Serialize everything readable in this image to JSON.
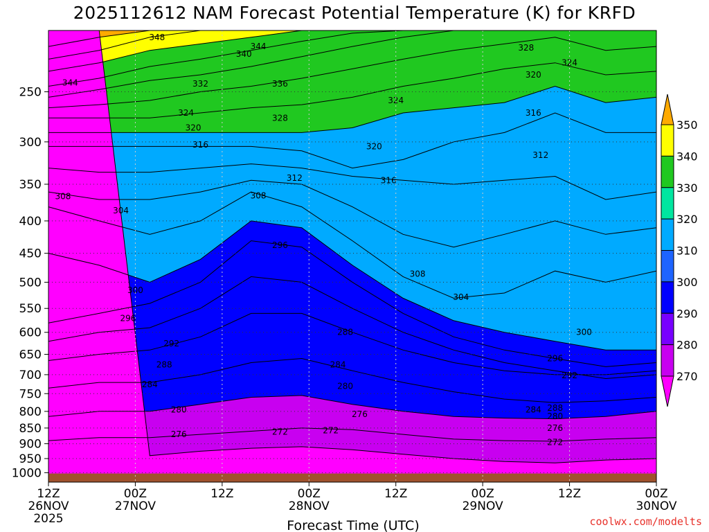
{
  "title": "2025112612 NAM Forecast Potential Temperature (K) for KRFD",
  "credit": "coolwx.com/modelts",
  "chart_data": {
    "type": "heatmap",
    "title": "2025112612 NAM Forecast Potential Temperature (K) for KRFD",
    "xlabel": "Forecast Time (UTC)",
    "ylabel": "",
    "y_log_scale": true,
    "y_inverted": true,
    "y_ticks": [
      250,
      300,
      350,
      400,
      450,
      500,
      550,
      600,
      650,
      700,
      750,
      800,
      850,
      900,
      950,
      1000
    ],
    "x_ticks": [
      {
        "hour": 0,
        "line1": "12Z",
        "line2": "26NOV",
        "line3": "2025"
      },
      {
        "hour": 12,
        "line1": "00Z",
        "line2": "27NOV",
        "line3": ""
      },
      {
        "hour": 24,
        "line1": "12Z",
        "line2": "",
        "line3": ""
      },
      {
        "hour": 36,
        "line1": "00Z",
        "line2": "28NOV",
        "line3": ""
      },
      {
        "hour": 48,
        "line1": "12Z",
        "line2": "",
        "line3": ""
      },
      {
        "hour": 60,
        "line1": "00Z",
        "line2": "29NOV",
        "line3": ""
      },
      {
        "hour": 72,
        "line1": "12Z",
        "line2": "",
        "line3": ""
      },
      {
        "hour": 84,
        "line1": "00Z",
        "line2": "30NOV",
        "line3": ""
      }
    ],
    "x_range_hours": [
      0,
      84
    ],
    "y_range": [
      200,
      1035
    ],
    "grid": true,
    "colorbar": {
      "levels": [
        270,
        280,
        290,
        300,
        310,
        320,
        330,
        340,
        350
      ],
      "colors": [
        "#ff00ff",
        "#c800f0",
        "#7800ff",
        "#0000ff",
        "#1e64ff",
        "#00aaff",
        "#00e6a0",
        "#20c820",
        "#ffff00",
        "#ffaa00"
      ],
      "placement": "right"
    },
    "contour_lines": [
      {
        "theta": 272,
        "p": [
          null,
          null,
          940,
          925,
          915,
          910,
          920,
          935,
          950,
          960,
          965,
          955,
          950
        ]
      },
      {
        "theta": 276,
        "p": [
          890,
          880,
          880,
          870,
          860,
          850,
          855,
          870,
          885,
          890,
          892,
          885,
          880
        ]
      },
      {
        "theta": 280,
        "p": [
          815,
          800,
          800,
          780,
          760,
          755,
          780,
          800,
          815,
          820,
          822,
          815,
          800
        ]
      },
      {
        "theta": 284,
        "p": [
          735,
          720,
          720,
          700,
          670,
          660,
          690,
          720,
          745,
          765,
          775,
          770,
          760
        ]
      },
      {
        "theta": 288,
        "p": [
          665,
          650,
          640,
          610,
          560,
          560,
          600,
          640,
          670,
          690,
          700,
          700,
          690
        ]
      },
      {
        "theta": 292,
        "p": [
          620,
          600,
          590,
          550,
          490,
          500,
          550,
          600,
          640,
          670,
          690,
          710,
          700
        ]
      },
      {
        "theta": 296,
        "p": [
          580,
          560,
          540,
          500,
          430,
          440,
          500,
          560,
          610,
          640,
          660,
          680,
          670
        ]
      },
      {
        "theta": 300,
        "p": [
          450,
          470,
          500,
          460,
          400,
          410,
          470,
          530,
          575,
          600,
          620,
          640,
          640
        ]
      },
      {
        "theta": 304,
        "p": [
          380,
          400,
          420,
          400,
          360,
          380,
          430,
          490,
          530,
          520,
          480,
          500,
          480
        ]
      },
      {
        "theta": 308,
        "p": [
          360,
          370,
          370,
          360,
          345,
          350,
          380,
          420,
          440,
          420,
          400,
          420,
          410
        ]
      },
      {
        "theta": 312,
        "p": [
          330,
          335,
          335,
          330,
          325,
          330,
          340,
          345,
          350,
          345,
          340,
          370,
          360
        ]
      },
      {
        "theta": 316,
        "p": [
          305,
          305,
          305,
          305,
          305,
          310,
          330,
          320,
          300,
          290,
          270,
          290,
          290
        ]
      },
      {
        "theta": 320,
        "p": [
          290,
          290,
          290,
          290,
          290,
          290,
          285,
          270,
          265,
          260,
          245,
          260,
          255
        ]
      },
      {
        "theta": 324,
        "p": [
          275,
          275,
          275,
          270,
          265,
          262,
          255,
          245,
          238,
          230,
          225,
          235,
          232
        ]
      },
      {
        "theta": 328,
        "p": [
          265,
          262,
          258,
          250,
          245,
          238,
          230,
          222,
          215,
          210,
          205,
          215,
          212
        ]
      },
      {
        "theta": 332,
        "p": [
          255,
          248,
          240,
          235,
          228,
          220,
          212,
          205,
          null,
          null,
          null,
          null,
          null
        ]
      },
      {
        "theta": 336,
        "p": [
          245,
          238,
          228,
          222,
          215,
          208,
          202,
          null,
          null,
          null,
          null,
          null,
          null
        ]
      },
      {
        "theta": 340,
        "p": [
          232,
          225,
          215,
          210,
          205,
          null,
          null,
          null,
          null,
          null,
          null,
          null,
          null
        ]
      },
      {
        "theta": 344,
        "p": [
          222,
          215,
          205,
          null,
          null,
          null,
          null,
          null,
          null,
          null,
          null,
          null,
          null
        ]
      },
      {
        "theta": 348,
        "p": [
          212,
          205,
          null,
          null,
          null,
          null,
          null,
          null,
          null,
          null,
          null,
          null,
          null
        ]
      }
    ],
    "contour_hours": [
      0,
      7,
      14,
      21,
      28,
      35,
      42,
      49,
      56,
      63,
      70,
      77,
      84
    ],
    "contour_labels": [
      {
        "text": "348",
        "hour": 15,
        "p": 205
      },
      {
        "text": "344",
        "hour": 29,
        "p": 212
      },
      {
        "text": "340",
        "hour": 27,
        "p": 218
      },
      {
        "text": "344",
        "hour": 3,
        "p": 242
      },
      {
        "text": "332",
        "hour": 21,
        "p": 243
      },
      {
        "text": "336",
        "hour": 32,
        "p": 243
      },
      {
        "text": "328",
        "hour": 66,
        "p": 213
      },
      {
        "text": "324",
        "hour": 72,
        "p": 225
      },
      {
        "text": "320",
        "hour": 67,
        "p": 235
      },
      {
        "text": "316",
        "hour": 67,
        "p": 270
      },
      {
        "text": "324",
        "hour": 19,
        "p": 270
      },
      {
        "text": "328",
        "hour": 32,
        "p": 275
      },
      {
        "text": "324",
        "hour": 48,
        "p": 258
      },
      {
        "text": "320",
        "hour": 20,
        "p": 285
      },
      {
        "text": "316",
        "hour": 21,
        "p": 303
      },
      {
        "text": "320",
        "hour": 45,
        "p": 305
      },
      {
        "text": "312",
        "hour": 68,
        "p": 315
      },
      {
        "text": "316",
        "hour": 47,
        "p": 345
      },
      {
        "text": "312",
        "hour": 34,
        "p": 342
      },
      {
        "text": "308",
        "hour": 29,
        "p": 365
      },
      {
        "text": "308",
        "hour": 2,
        "p": 366
      },
      {
        "text": "304",
        "hour": 10,
        "p": 385
      },
      {
        "text": "308",
        "hour": 51,
        "p": 485
      },
      {
        "text": "304",
        "hour": 57,
        "p": 528
      },
      {
        "text": "300",
        "hour": 12,
        "p": 515
      },
      {
        "text": "296",
        "hour": 32,
        "p": 437
      },
      {
        "text": "296",
        "hour": 11,
        "p": 570
      },
      {
        "text": "288",
        "hour": 41,
        "p": 600
      },
      {
        "text": "292",
        "hour": 17,
        "p": 625
      },
      {
        "text": "300",
        "hour": 74,
        "p": 600
      },
      {
        "text": "296",
        "hour": 70,
        "p": 660
      },
      {
        "text": "288",
        "hour": 16,
        "p": 675
      },
      {
        "text": "284",
        "hour": 40,
        "p": 675
      },
      {
        "text": "292",
        "hour": 72,
        "p": 702
      },
      {
        "text": "284",
        "hour": 14,
        "p": 725
      },
      {
        "text": "280",
        "hour": 41,
        "p": 730
      },
      {
        "text": "280",
        "hour": 18,
        "p": 795
      },
      {
        "text": "276",
        "hour": 43,
        "p": 808
      },
      {
        "text": "284",
        "hour": 67,
        "p": 795
      },
      {
        "text": "288",
        "hour": 70,
        "p": 790
      },
      {
        "text": "280",
        "hour": 70,
        "p": 815
      },
      {
        "text": "276",
        "hour": 70,
        "p": 850
      },
      {
        "text": "272",
        "hour": 32,
        "p": 862
      },
      {
        "text": "272",
        "hour": 39,
        "p": 858
      },
      {
        "text": "276",
        "hour": 18,
        "p": 870
      },
      {
        "text": "272",
        "hour": 70,
        "p": 895
      }
    ]
  }
}
